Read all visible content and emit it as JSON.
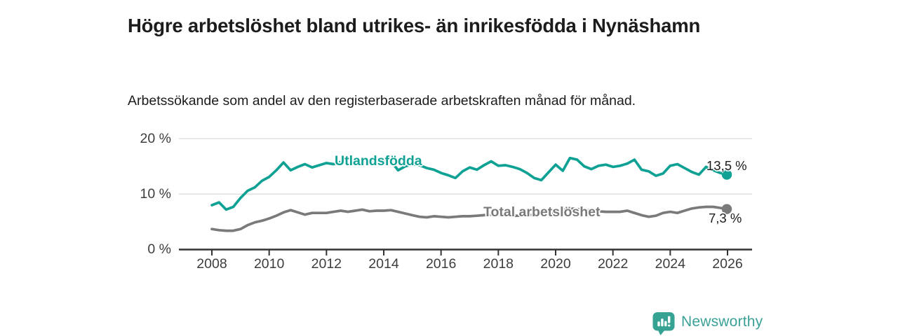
{
  "title": "Högre arbetslöshet bland utrikes- än inrikesfödda i Nynäshamn",
  "subtitle": "Arbetssökande som andel av den registerbaserade arbetskraften månad för månad.",
  "branding": {
    "name": "Newsworthy",
    "logo_icon": "speech-bubble-bar-chart",
    "brand_color": "#3ba096"
  },
  "colors": {
    "background": "#ffffff",
    "text": "#1c1c1c",
    "axis_text": "#3d3d3d",
    "axis_line": "#333333",
    "gridline": "#dadada",
    "series_foreign_born": "#0fa194",
    "series_total": "#7a7a7a"
  },
  "chart_data": {
    "type": "line",
    "title": "Högre arbetslöshet bland utrikes- än inrikesfödda i Nynäshamn",
    "subtitle": "Arbetssökande som andel av den registerbaserade arbetskraften månad för månad.",
    "xlabel": "",
    "ylabel": "",
    "unit": "%",
    "grid": "horizontal",
    "legend": "inline-labels",
    "xlim": [
      2006.9,
      2026.9
    ],
    "ylim": [
      0,
      20
    ],
    "x_ticks": [
      2008,
      2010,
      2012,
      2014,
      2016,
      2018,
      2020,
      2022,
      2024,
      2026
    ],
    "y_ticks": [
      {
        "value": 20,
        "label": "20 %"
      },
      {
        "value": 10,
        "label": "10 %"
      },
      {
        "value": 0,
        "label": "0 %"
      }
    ],
    "x_start_year": 2008.0,
    "x_step_years": 0.25,
    "series": [
      {
        "name": "Utlandsfödda",
        "color": "#0fa194",
        "end_value": 13.5,
        "end_label": "13,5 %",
        "values": [
          8.0,
          8.5,
          7.2,
          7.7,
          9.3,
          10.6,
          11.2,
          12.4,
          13.1,
          14.3,
          15.7,
          14.3,
          14.9,
          15.4,
          14.8,
          15.2,
          15.6,
          15.4,
          15.8,
          15.5,
          15.7,
          15.9,
          15.6,
          15.8,
          15.9,
          16.0,
          14.3,
          15.0,
          15.4,
          15.2,
          14.7,
          14.4,
          13.8,
          13.4,
          12.9,
          14.1,
          14.8,
          14.4,
          15.2,
          15.9,
          15.1,
          15.2,
          14.9,
          14.5,
          13.8,
          12.9,
          12.5,
          13.9,
          15.3,
          14.2,
          16.5,
          16.2,
          15.0,
          14.5,
          15.1,
          15.3,
          14.9,
          15.1,
          15.5,
          16.2,
          14.4,
          14.1,
          13.3,
          13.7,
          15.1,
          15.4,
          14.7,
          14.0,
          13.5,
          14.9,
          14.3,
          13.8,
          13.5
        ]
      },
      {
        "name": "Total arbetslöshet",
        "color": "#7a7a7a",
        "end_value": 7.3,
        "end_label": "7,3 %",
        "values": [
          3.7,
          3.5,
          3.4,
          3.4,
          3.7,
          4.4,
          4.9,
          5.2,
          5.6,
          6.1,
          6.7,
          7.1,
          6.7,
          6.3,
          6.6,
          6.6,
          6.6,
          6.8,
          7.0,
          6.8,
          7.0,
          7.2,
          6.9,
          7.0,
          7.0,
          7.1,
          6.8,
          6.5,
          6.2,
          5.9,
          5.8,
          6.0,
          5.9,
          5.8,
          5.9,
          6.0,
          6.0,
          6.1,
          6.2,
          6.3,
          6.3,
          6.2,
          6.1,
          6.1,
          6.2,
          6.3,
          6.4,
          6.6,
          6.8,
          7.2,
          7.4,
          7.3,
          7.1,
          7.0,
          6.9,
          6.8,
          6.8,
          6.8,
          7.0,
          6.6,
          6.2,
          5.9,
          6.1,
          6.6,
          6.8,
          6.6,
          7.0,
          7.4,
          7.6,
          7.7,
          7.7,
          7.5,
          7.3
        ]
      }
    ]
  }
}
